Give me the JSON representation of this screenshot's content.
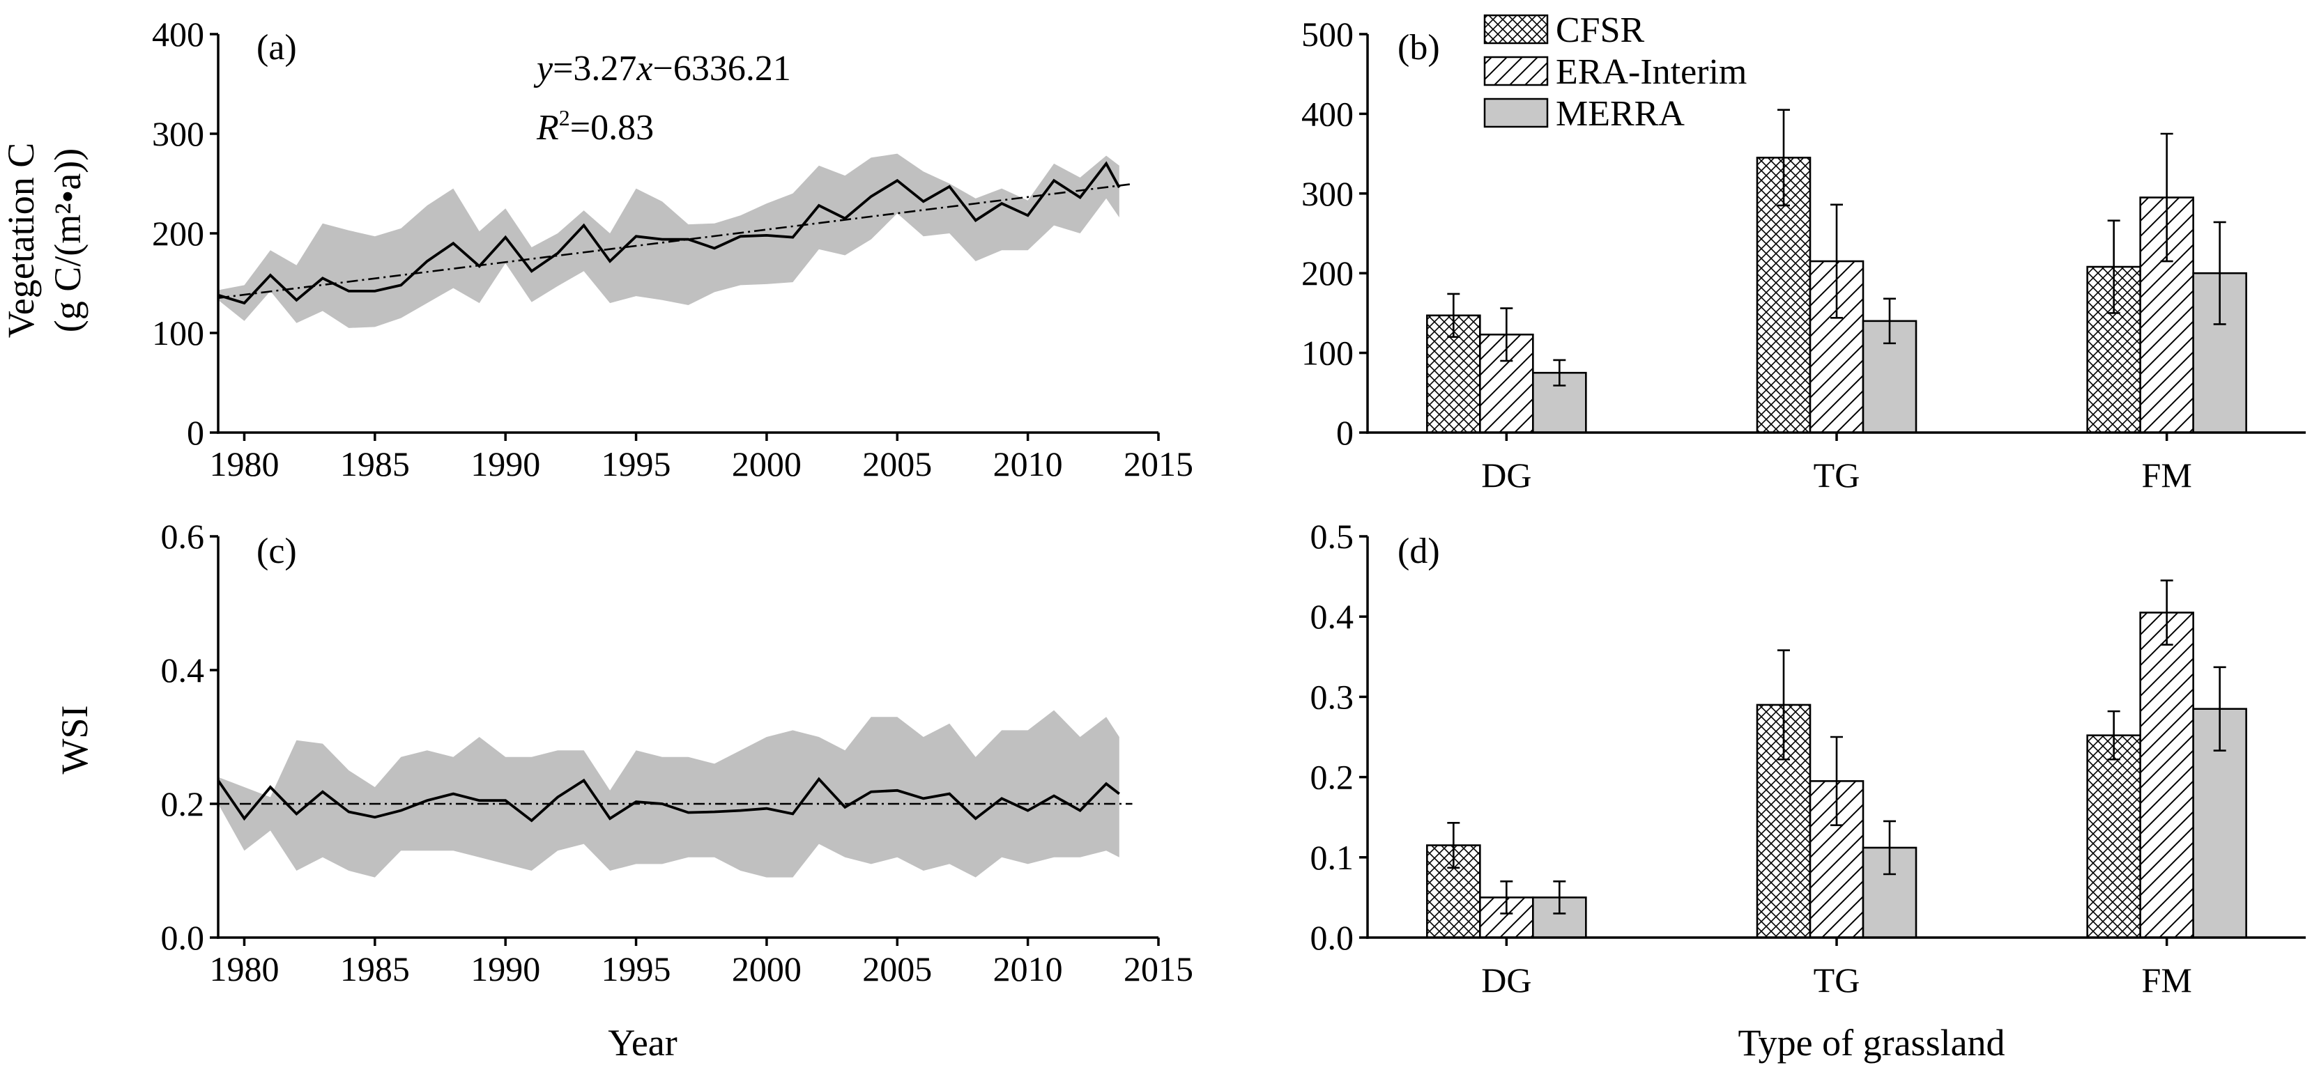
{
  "chart_data": [
    {
      "panel_label": "(a)",
      "type": "line",
      "ylabel_line1": "Vegetation C",
      "ylabel_line2": "(g C/(m²•a))",
      "xlim": [
        1979,
        2015
      ],
      "ylim": [
        0,
        400
      ],
      "xticks": [
        "1980",
        "1985",
        "1990",
        "1995",
        "2000",
        "2005",
        "2010",
        "2015"
      ],
      "yticks": [
        "0",
        "100",
        "200",
        "300",
        "400"
      ],
      "x": [
        1979,
        1980,
        1981,
        1982,
        1983,
        1984,
        1985,
        1986,
        1987,
        1988,
        1989,
        1990,
        1991,
        1992,
        1993,
        1994,
        1995,
        1996,
        1997,
        1998,
        1999,
        2000,
        2001,
        2002,
        2003,
        2004,
        2005,
        2006,
        2007,
        2008,
        2009,
        2010,
        2011,
        2012,
        2013,
        2013.5
      ],
      "mean": [
        138,
        130,
        158,
        133,
        155,
        142,
        142,
        148,
        172,
        190,
        167,
        196,
        162,
        180,
        208,
        172,
        197,
        194,
        194,
        185,
        197,
        198,
        196,
        228,
        215,
        237,
        253,
        232,
        247,
        213,
        230,
        218,
        253,
        236,
        270,
        246
      ],
      "upper": [
        143,
        148,
        183,
        168,
        210,
        203,
        197,
        205,
        228,
        245,
        202,
        225,
        186,
        200,
        223,
        200,
        245,
        232,
        209,
        210,
        218,
        230,
        240,
        268,
        258,
        276,
        280,
        262,
        250,
        235,
        245,
        233,
        270,
        256,
        278,
        268
      ],
      "lower": [
        133,
        112,
        142,
        110,
        122,
        105,
        106,
        115,
        130,
        145,
        130,
        170,
        131,
        147,
        162,
        130,
        137,
        133,
        128,
        141,
        148,
        149,
        151,
        184,
        178,
        194,
        220,
        197,
        200,
        172,
        183,
        183,
        208,
        200,
        235,
        216
      ],
      "trend": {
        "slope": 3.27,
        "intercept": -6336.21,
        "x_range": [
          1979,
          2014
        ]
      },
      "equation_y": "y",
      "equation_rhs": "=3.27",
      "equation_x": "x",
      "equation_tail": "−6336.21",
      "r2_r": "R",
      "r2_sup": "2",
      "r2_value": "=0.83"
    },
    {
      "panel_label": "(b)",
      "type": "bar",
      "categories": [
        "DG",
        "TG",
        "FM"
      ],
      "ylim": [
        0,
        500
      ],
      "yticks": [
        "0",
        "100",
        "200",
        "300",
        "400",
        "500"
      ],
      "series": [
        {
          "name": "CFSR",
          "values": [
            147,
            345,
            208
          ],
          "errors": [
            27,
            60,
            58
          ]
        },
        {
          "name": "ERA-Interim",
          "values": [
            123,
            215,
            295
          ],
          "errors": [
            33,
            71,
            80
          ]
        },
        {
          "name": "MERRA",
          "values": [
            75,
            140,
            200
          ],
          "errors": [
            16,
            28,
            64
          ]
        }
      ]
    },
    {
      "panel_label": "(c)",
      "type": "line",
      "xlabel": "Year",
      "ylabel": "WSI",
      "xlim": [
        1979,
        2015
      ],
      "ylim": [
        0,
        0.6
      ],
      "xticks": [
        "1980",
        "1985",
        "1990",
        "1995",
        "2000",
        "2005",
        "2010",
        "2015"
      ],
      "yticks": [
        "0.0",
        "0.2",
        "0.4",
        "0.6"
      ],
      "x": [
        1979,
        1980,
        1981,
        1982,
        1983,
        1984,
        1985,
        1986,
        1987,
        1988,
        1989,
        1990,
        1991,
        1992,
        1993,
        1994,
        1995,
        1996,
        1997,
        1998,
        1999,
        2000,
        2001,
        2002,
        2003,
        2004,
        2005,
        2006,
        2007,
        2008,
        2009,
        2010,
        2011,
        2012,
        2013,
        2013.5
      ],
      "mean": [
        0.235,
        0.178,
        0.225,
        0.185,
        0.218,
        0.188,
        0.18,
        0.19,
        0.205,
        0.215,
        0.205,
        0.205,
        0.175,
        0.21,
        0.235,
        0.178,
        0.203,
        0.2,
        0.187,
        0.188,
        0.19,
        0.193,
        0.185,
        0.237,
        0.195,
        0.218,
        0.22,
        0.208,
        0.215,
        0.178,
        0.208,
        0.19,
        0.212,
        0.19,
        0.23,
        0.215
      ],
      "upper": [
        0.24,
        0.225,
        0.21,
        0.295,
        0.29,
        0.25,
        0.225,
        0.27,
        0.28,
        0.27,
        0.3,
        0.27,
        0.27,
        0.28,
        0.28,
        0.22,
        0.28,
        0.27,
        0.27,
        0.26,
        0.28,
        0.3,
        0.31,
        0.3,
        0.28,
        0.33,
        0.33,
        0.3,
        0.32,
        0.27,
        0.31,
        0.31,
        0.34,
        0.3,
        0.33,
        0.3
      ],
      "lower": [
        0.2,
        0.13,
        0.16,
        0.1,
        0.12,
        0.1,
        0.09,
        0.13,
        0.13,
        0.13,
        0.12,
        0.11,
        0.1,
        0.13,
        0.14,
        0.1,
        0.11,
        0.11,
        0.12,
        0.12,
        0.1,
        0.09,
        0.09,
        0.14,
        0.12,
        0.11,
        0.12,
        0.1,
        0.11,
        0.09,
        0.12,
        0.11,
        0.12,
        0.12,
        0.13,
        0.12
      ],
      "trend": {
        "slope": 0,
        "intercept": 0.2,
        "x_range": [
          1979,
          2014
        ]
      }
    },
    {
      "panel_label": "(d)",
      "type": "bar",
      "xlabel": "Type of grassland",
      "categories": [
        "DG",
        "TG",
        "FM"
      ],
      "ylim": [
        0,
        0.5
      ],
      "yticks": [
        "0.0",
        "0.1",
        "0.2",
        "0.3",
        "0.4",
        "0.5"
      ],
      "series": [
        {
          "name": "CFSR",
          "values": [
            0.115,
            0.29,
            0.252
          ],
          "errors": [
            0.028,
            0.068,
            0.03
          ]
        },
        {
          "name": "ERA-Interim",
          "values": [
            0.05,
            0.195,
            0.405
          ],
          "errors": [
            0.02,
            0.055,
            0.04
          ]
        },
        {
          "name": "MERRA",
          "values": [
            0.05,
            0.112,
            0.285
          ],
          "errors": [
            0.02,
            0.033,
            0.052
          ]
        }
      ]
    }
  ],
  "colors": {
    "band": "#c0c0c0",
    "merra_bar": "#c8c8c8",
    "line": "#000000"
  }
}
